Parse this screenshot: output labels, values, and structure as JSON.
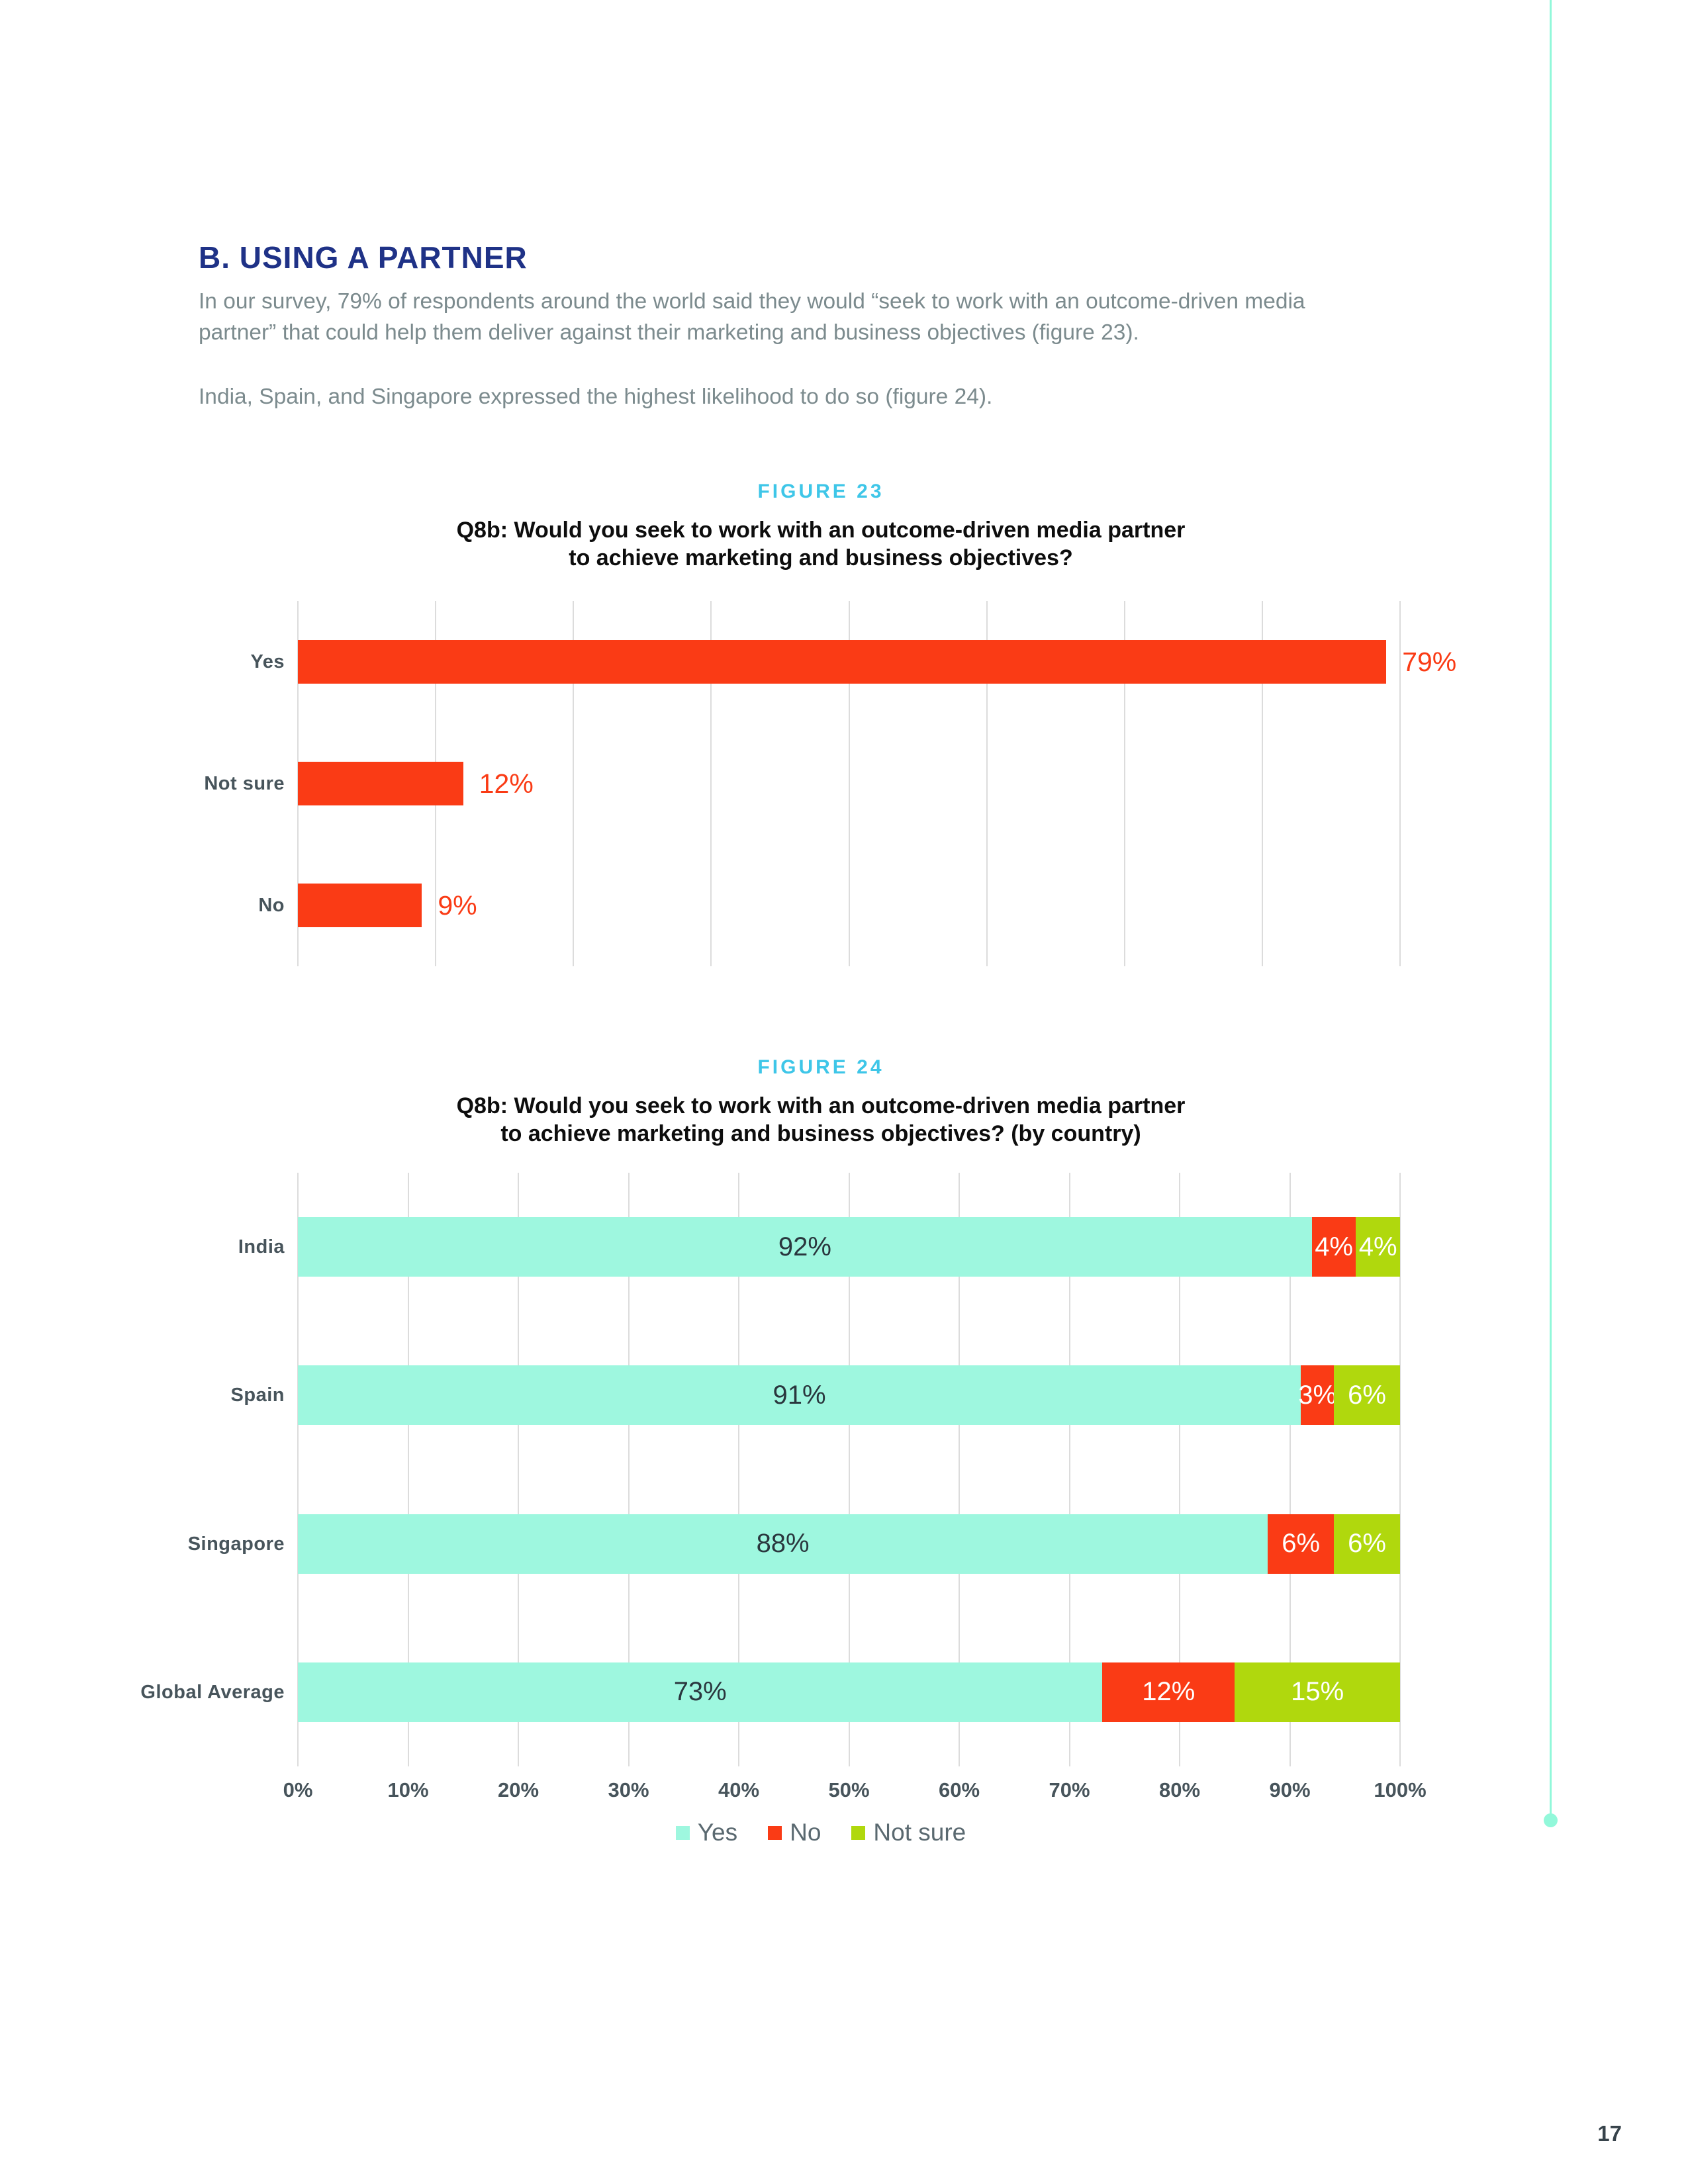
{
  "page": {
    "number": "17"
  },
  "header": {
    "title": "B. USING A PARTNER"
  },
  "intro": {
    "p1": "In our survey, 79% of respondents around the world said they would “seek to work with an outcome-driven media partner” that could help them deliver against their marketing and business objectives (figure 23).",
    "p2": "India, Spain, and Singapore expressed the highest likelihood to do so (figure 24)."
  },
  "colors": {
    "navy": "#1f3287",
    "cyan": "#3ec6e8",
    "orange": "#fa3b15",
    "mint": "#9ef7df",
    "lime": "#b0d80d",
    "slate": "#47545b",
    "body_text": "#7c8b8e",
    "grid": "#dcdcdc",
    "label_dark": "#2a373e",
    "accent_mint": "#92f8da"
  },
  "figure23": {
    "label": "FIGURE 23",
    "title_lines": [
      "Q8b: Would you seek to work with an outcome-driven media partner",
      "to achieve marketing and business objectives?"
    ],
    "chart_data": {
      "type": "bar",
      "orientation": "horizontal",
      "categories": [
        "Yes",
        "Not sure",
        "No"
      ],
      "values": [
        79,
        12,
        9
      ],
      "value_labels": [
        "79%",
        "12%",
        "9%"
      ],
      "xlim": [
        0,
        80
      ],
      "gridline_step": 10,
      "grid": "on",
      "x_tick_labels_shown": false,
      "bar_color": "#fa3b15"
    }
  },
  "figure24": {
    "label": "FIGURE 24",
    "title_lines": [
      "Q8b: Would you seek to work with an outcome-driven media partner",
      "to achieve marketing and business objectives? (by country)"
    ],
    "chart_data": {
      "type": "bar",
      "stacked": true,
      "orientation": "horizontal",
      "categories": [
        "India",
        "Spain",
        "Singapore",
        "Global Average"
      ],
      "series": [
        {
          "name": "Yes",
          "color": "#9ef7df",
          "values": [
            92,
            91,
            88,
            73
          ]
        },
        {
          "name": "No",
          "color": "#fa3b15",
          "values": [
            4,
            3,
            6,
            12
          ]
        },
        {
          "name": "Not sure",
          "color": "#b0d80d",
          "values": [
            4,
            6,
            6,
            15
          ]
        }
      ],
      "xlim": [
        0,
        100
      ],
      "gridline_step": 10,
      "grid": "on",
      "x_ticks": [
        "0%",
        "10%",
        "20%",
        "30%",
        "40%",
        "50%",
        "60%",
        "70%",
        "80%",
        "90%",
        "100%"
      ],
      "legend_position": "bottom"
    }
  },
  "legend": {
    "items": [
      {
        "label": "Yes",
        "color": "#9ef7df"
      },
      {
        "label": "No",
        "color": "#fa3b15"
      },
      {
        "label": "Not sure",
        "color": "#b0d80d"
      }
    ]
  }
}
